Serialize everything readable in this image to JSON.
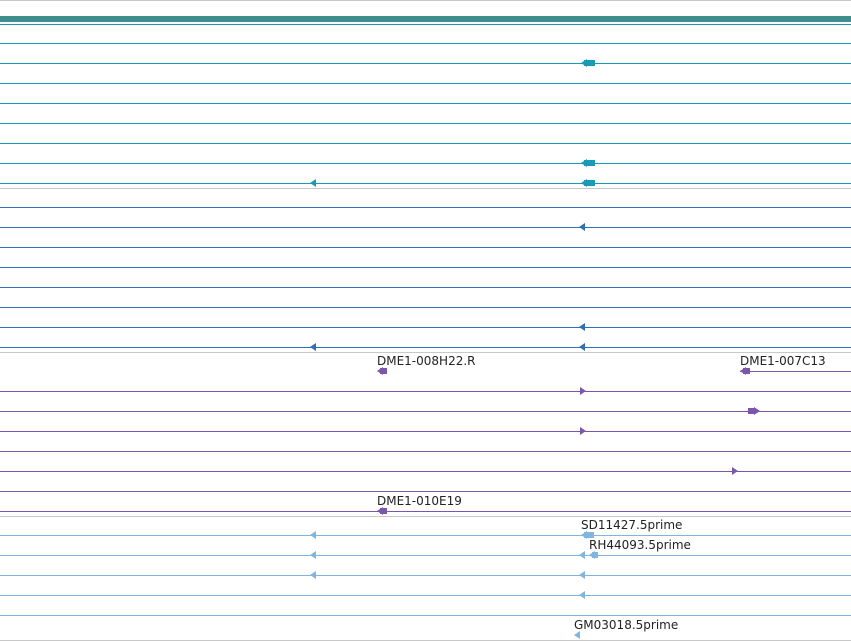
{
  "colors": {
    "top_bar": "#3f8f8f",
    "separator": "#c8c8c8",
    "teal": "#1a9bb5",
    "blue": "#2f6fb5",
    "purple": "#7a57a8",
    "light_blue": "#7fb5df"
  },
  "tracks": {
    "teal_group": {
      "color_key": "teal"
    },
    "blue_group": {
      "color_key": "blue"
    },
    "purple_group": {
      "color_key": "purple",
      "labels": [
        "DME1-008H22.R",
        "DME1-007C13",
        "DME1-010E19"
      ]
    },
    "light_blue_group": {
      "color_key": "light_blue",
      "labels": [
        "SD11427.5prime",
        "RH44093.5prime",
        "GM03018.5prime"
      ]
    }
  }
}
